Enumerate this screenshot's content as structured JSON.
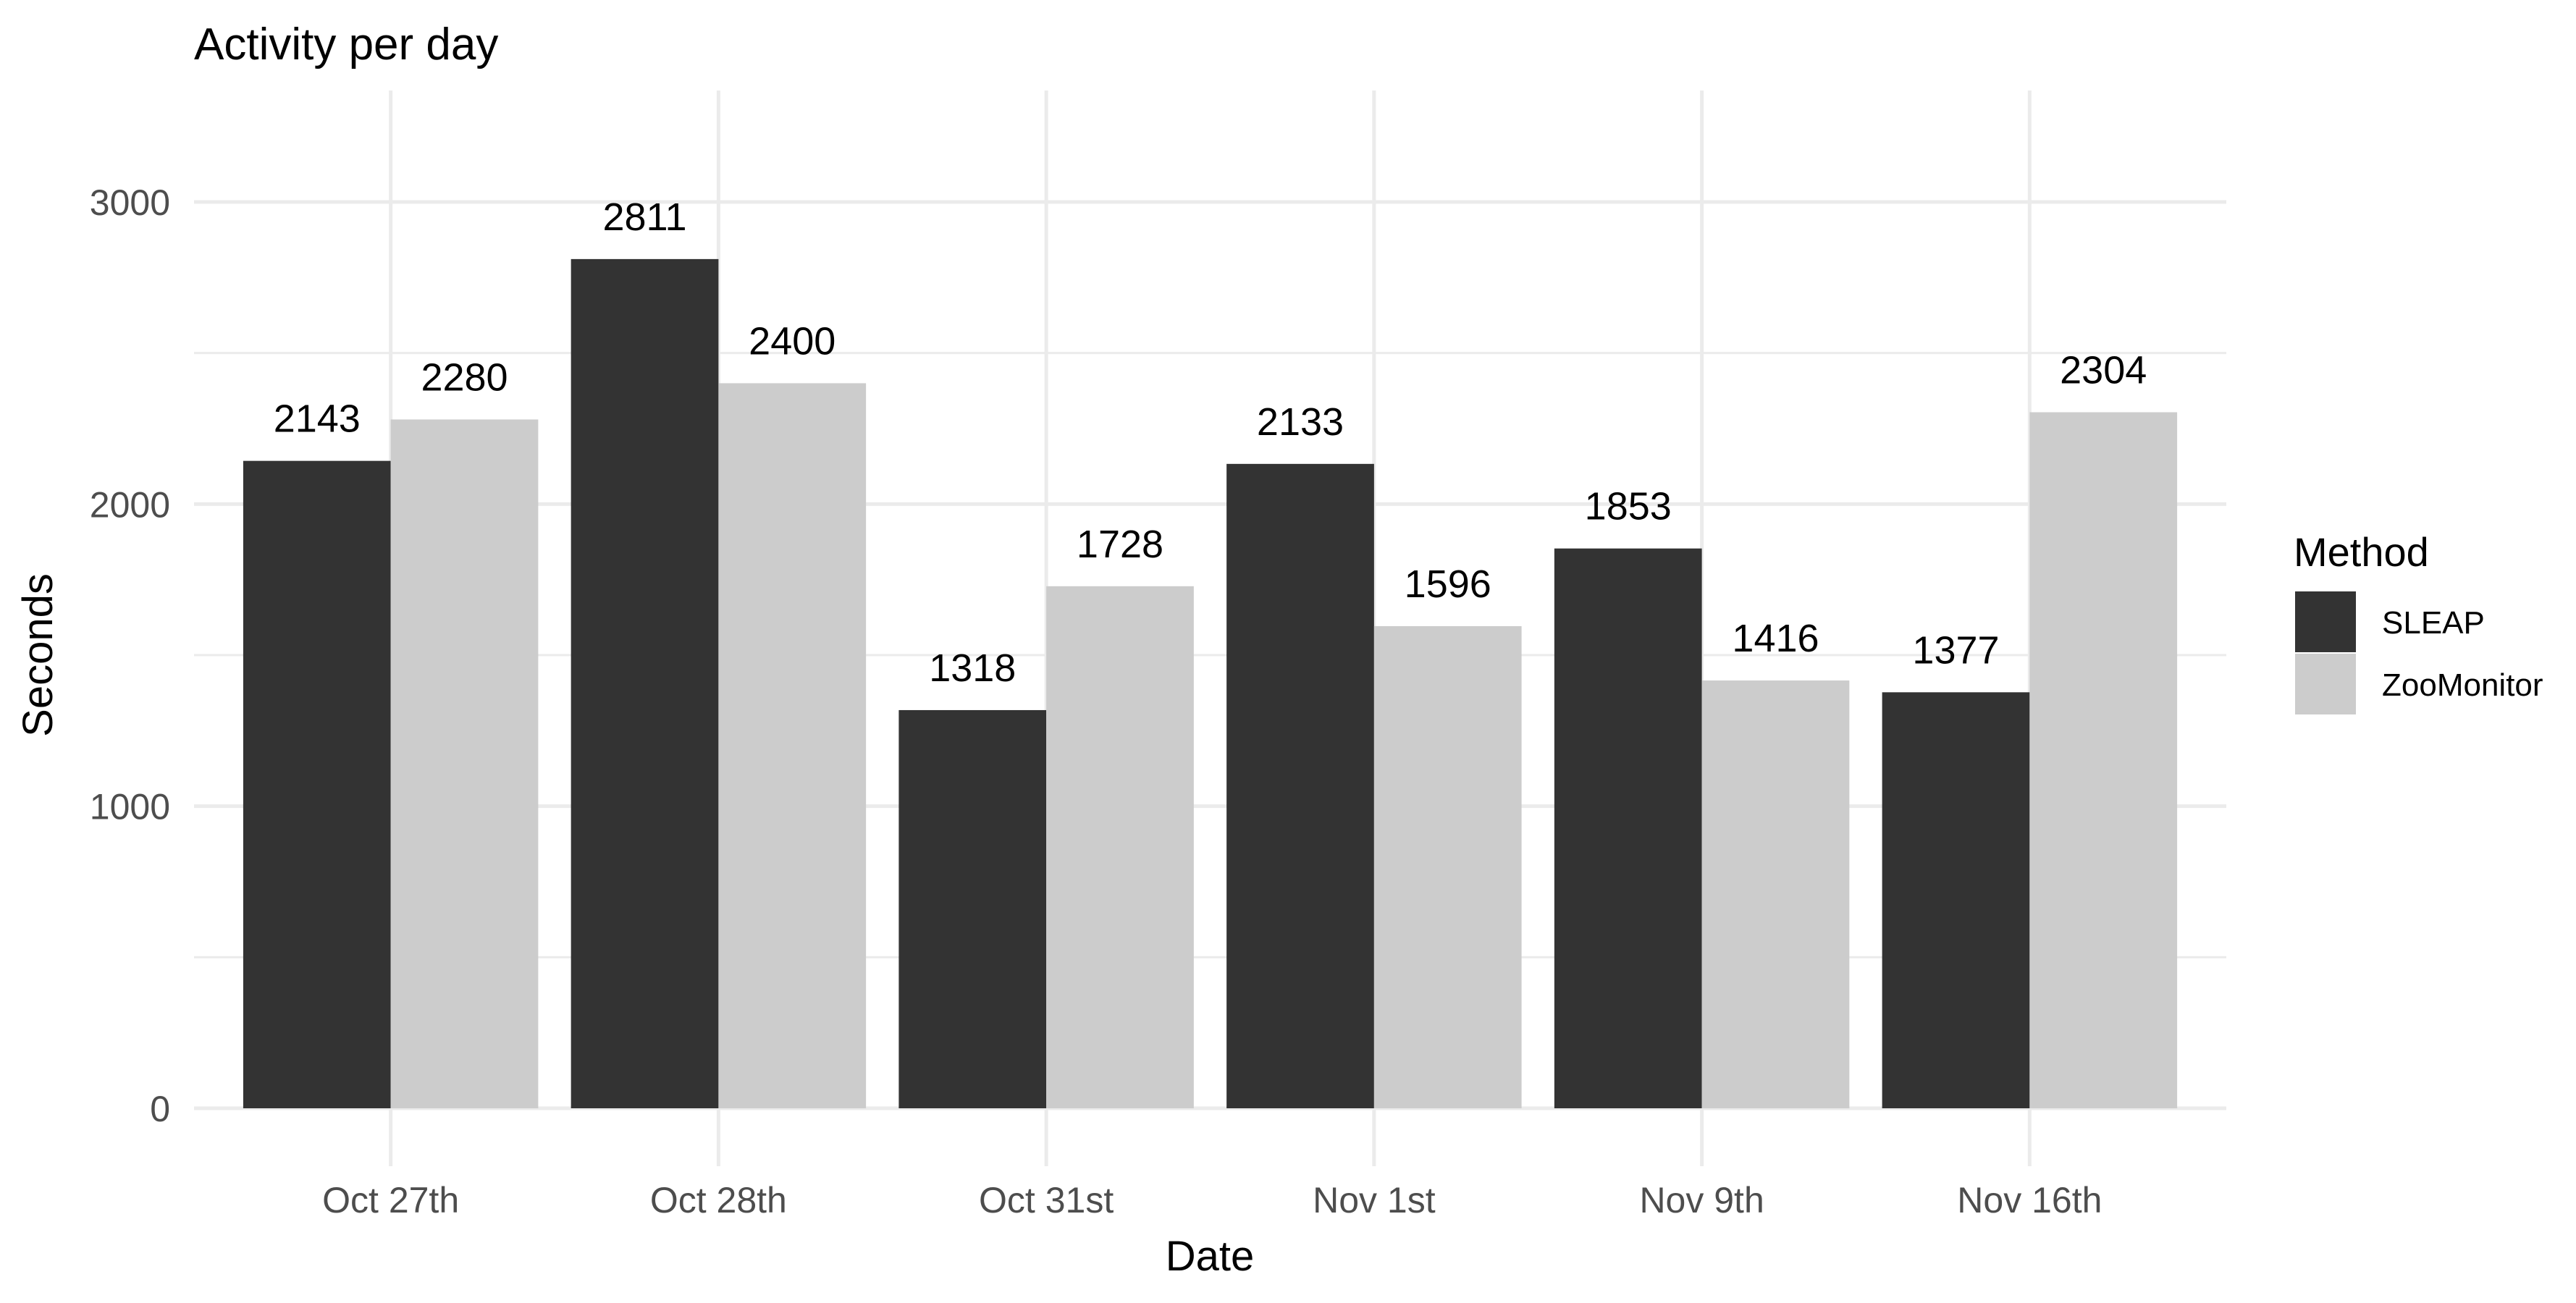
{
  "chart_data": {
    "type": "bar",
    "title": "Activity per day",
    "xlabel": "Date",
    "ylabel": "Seconds",
    "categories": [
      "Oct 27th",
      "Oct 28th",
      "Oct 31st",
      "Nov 1st",
      "Nov 9th",
      "Nov 16th"
    ],
    "series": [
      {
        "name": "SLEAP",
        "color": "#333333",
        "values": [
          2143,
          2811,
          1318,
          2133,
          1853,
          1377
        ]
      },
      {
        "name": "ZooMonitor",
        "color": "#cccccc",
        "values": [
          2280,
          2400,
          1728,
          1596,
          1416,
          2304
        ]
      }
    ],
    "yticks": [
      0,
      1000,
      2000,
      3000
    ],
    "ylim": [
      0,
      3000
    ],
    "grid": true,
    "legend": {
      "title": "Method",
      "position": "right"
    },
    "data_labels": true
  }
}
